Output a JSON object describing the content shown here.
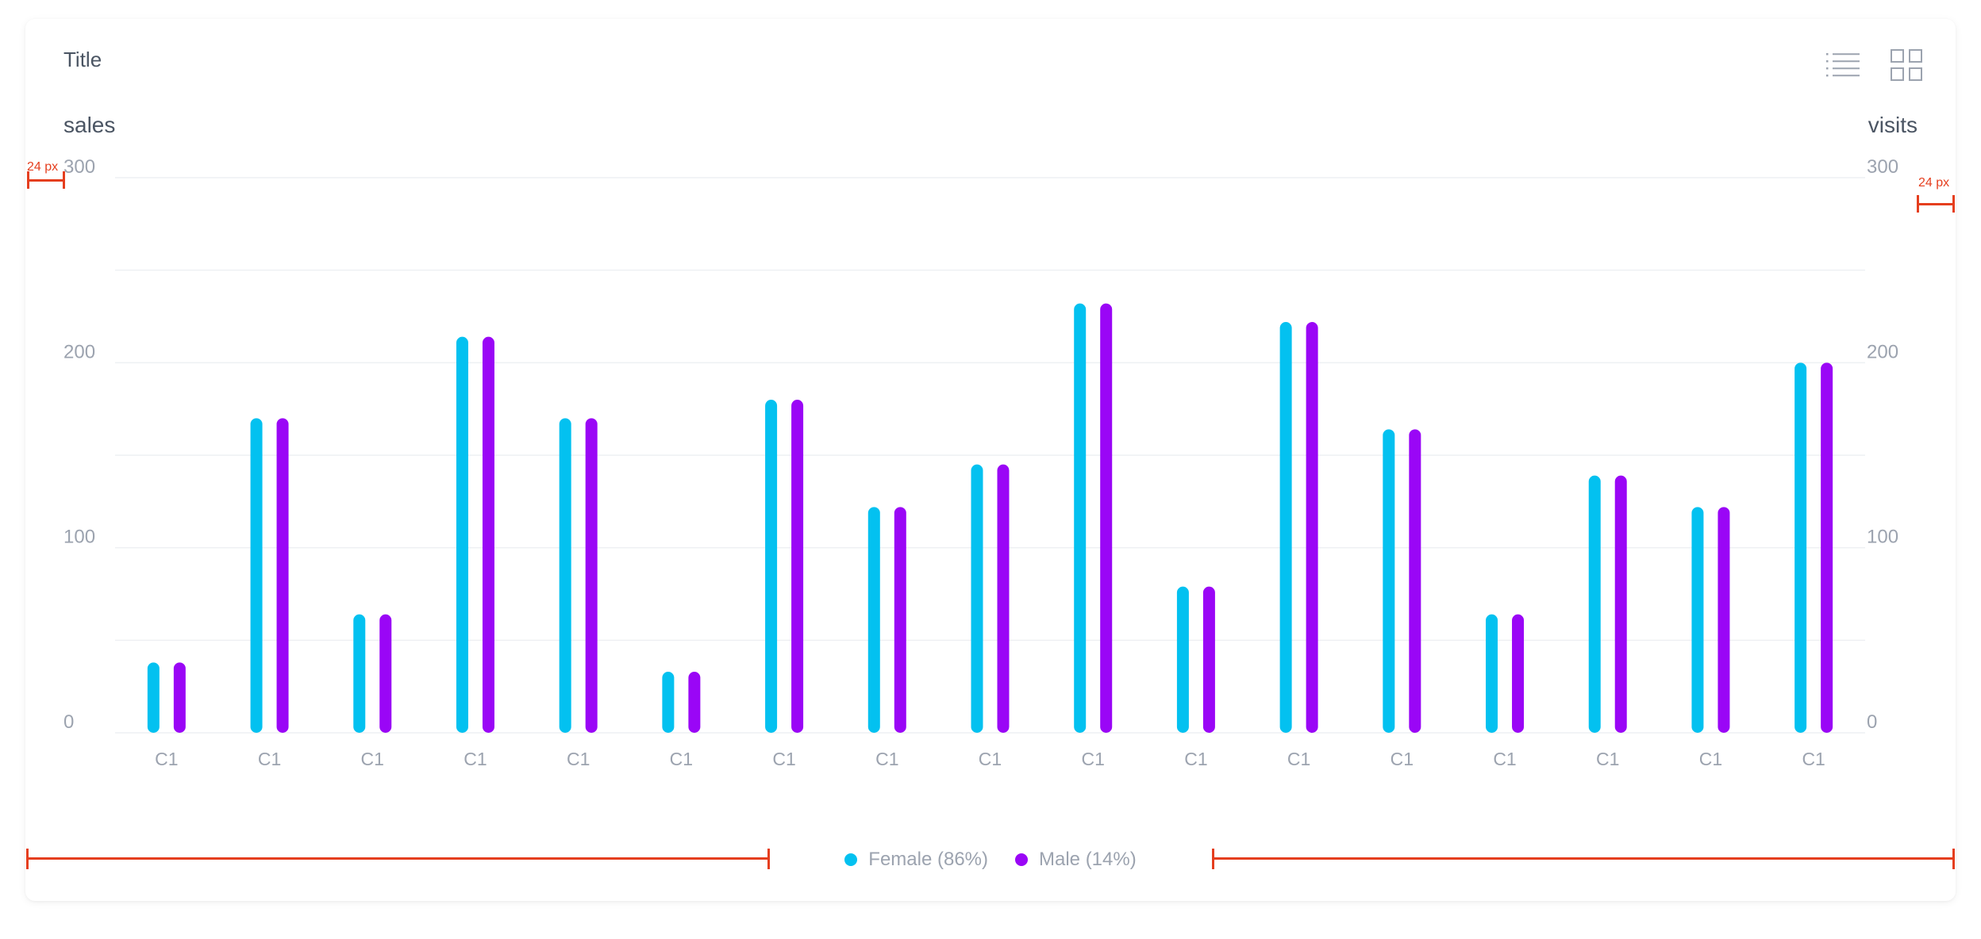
{
  "card": {
    "title": "Title"
  },
  "toolbar": {
    "list_icon": "list-icon",
    "grid_icon": "grid-icon"
  },
  "colors": {
    "female": "#03c1f0",
    "male": "#9a06f6",
    "grid": "#eef0f3",
    "text": "#9ca3af",
    "spec": "#e53e1e"
  },
  "chart_data": {
    "type": "bar",
    "categories": [
      "C1",
      "C1",
      "C1",
      "C1",
      "C1",
      "C1",
      "C1",
      "C1",
      "C1",
      "C1",
      "C1",
      "C1",
      "C1",
      "C1",
      "C1",
      "C1",
      "C1"
    ],
    "series": [
      {
        "name": "Female (86%)",
        "values": [
          38,
          170,
          64,
          214,
          170,
          33,
          180,
          122,
          145,
          232,
          79,
          222,
          164,
          64,
          139,
          122,
          200
        ]
      },
      {
        "name": "Male (14%)",
        "values": [
          38,
          170,
          64,
          214,
          170,
          33,
          180,
          122,
          145,
          232,
          79,
          222,
          164,
          64,
          139,
          122,
          200
        ]
      }
    ],
    "ylabel": "sales",
    "y2label": "visits",
    "ylim": [
      0,
      300
    ],
    "yticks": [
      0,
      100,
      200,
      300
    ],
    "y2lim": [
      0,
      300
    ],
    "y2ticks": [
      0,
      100,
      200,
      300
    ],
    "grid": true,
    "legend_position": "bottom-center"
  },
  "legend": {
    "female": "Female (86%)",
    "male": "Male (14%)"
  },
  "spec": {
    "left_padding": "24 px",
    "right_padding": "24 px"
  }
}
